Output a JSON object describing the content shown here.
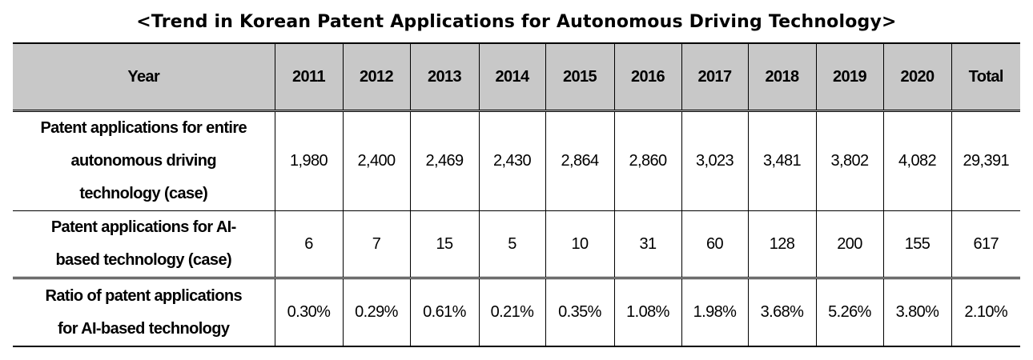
{
  "title": "<Trend in Korean Patent Applications for Autonomous Driving Technology>",
  "table": {
    "headers": [
      "Year",
      "2011",
      "2012",
      "2013",
      "2014",
      "2015",
      "2016",
      "2017",
      "2018",
      "2019",
      "2020",
      "Total"
    ],
    "rows": [
      {
        "label_lines": [
          "Patent applications for entire",
          "autonomous driving",
          "technology (case)"
        ],
        "cells": [
          "1,980",
          "2,400",
          "2,469",
          "2,430",
          "2,864",
          "2,860",
          "3,023",
          "3,481",
          "3,802",
          "4,082",
          "29,391"
        ]
      },
      {
        "label_lines": [
          "Patent applications for AI-",
          "based technology (case)"
        ],
        "cells": [
          "6",
          "7",
          "15",
          "5",
          "10",
          "31",
          "60",
          "128",
          "200",
          "155",
          "617"
        ]
      },
      {
        "label_lines": [
          "Ratio of patent applications",
          "for AI-based technology"
        ],
        "cells": [
          "0.30%",
          "0.29%",
          "0.61%",
          "0.21%",
          "0.35%",
          "1.08%",
          "1.98%",
          "3.68%",
          "5.26%",
          "3.80%",
          "2.10%"
        ]
      }
    ]
  }
}
